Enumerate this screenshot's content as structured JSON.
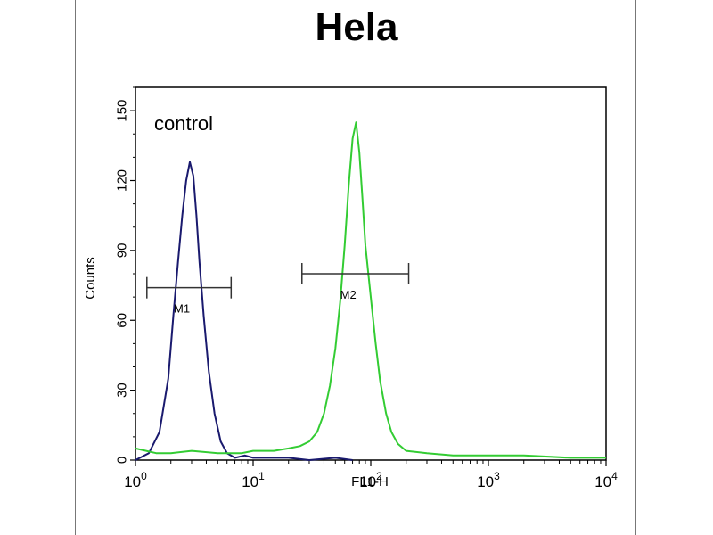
{
  "chart_data": {
    "type": "line",
    "title": "Hela",
    "xlabel": "FL1-H",
    "ylabel": "Counts",
    "x_scale": "log",
    "xlim": [
      1,
      10000
    ],
    "ylim": [
      0,
      160
    ],
    "x_ticks": [
      {
        "base": "10",
        "exp": "0",
        "value": 1
      },
      {
        "base": "10",
        "exp": "1",
        "value": 10
      },
      {
        "base": "10",
        "exp": "2",
        "value": 100
      },
      {
        "base": "10",
        "exp": "3",
        "value": 1000
      },
      {
        "base": "10",
        "exp": "4",
        "value": 10000
      }
    ],
    "y_ticks": [
      {
        "label": "0",
        "value": 0
      },
      {
        "label": "30",
        "value": 30
      },
      {
        "label": "60",
        "value": 60
      },
      {
        "label": "90",
        "value": 90
      },
      {
        "label": "120",
        "value": 120
      },
      {
        "label": "150",
        "value": 150
      }
    ],
    "annotation": "control",
    "series": [
      {
        "color": "#1a1a6e",
        "x": [
          1.0,
          1.3,
          1.6,
          1.9,
          2.1,
          2.3,
          2.5,
          2.7,
          2.9,
          3.1,
          3.3,
          3.5,
          3.8,
          4.2,
          4.7,
          5.3,
          6.0,
          7.0,
          8.5,
          10,
          15,
          20,
          30,
          50,
          70
        ],
        "y": [
          0,
          3,
          12,
          35,
          62,
          85,
          105,
          120,
          128,
          122,
          105,
          85,
          62,
          38,
          20,
          8,
          3,
          1,
          2,
          1,
          1,
          1,
          0,
          1,
          0
        ]
      },
      {
        "color": "#33cc33",
        "x": [
          1.0,
          1.5,
          2,
          3,
          5,
          8,
          10,
          15,
          20,
          25,
          30,
          35,
          40,
          45,
          50,
          55,
          60,
          65,
          70,
          75,
          80,
          85,
          90,
          100,
          110,
          120,
          135,
          150,
          170,
          200,
          300,
          500,
          1000,
          2000,
          5000,
          10000
        ],
        "y": [
          5,
          3,
          3,
          4,
          3,
          3,
          4,
          4,
          5,
          6,
          8,
          12,
          20,
          32,
          48,
          68,
          92,
          118,
          138,
          145,
          132,
          112,
          92,
          70,
          50,
          34,
          20,
          12,
          7,
          4,
          3,
          2,
          2,
          2,
          1,
          1
        ]
      }
    ],
    "markers": [
      {
        "label": "M1",
        "x_start": 1.25,
        "x_end": 6.5,
        "y": 74
      },
      {
        "label": "M2",
        "x_start": 26,
        "x_end": 210,
        "y": 80
      }
    ]
  }
}
